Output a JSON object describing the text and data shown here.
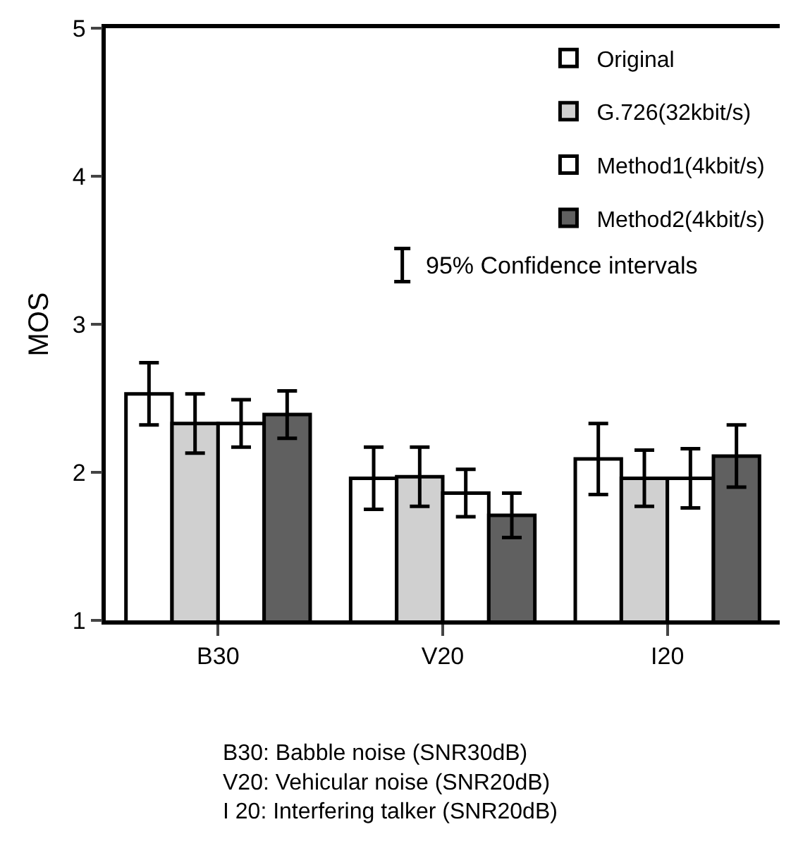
{
  "chart_data": {
    "type": "bar",
    "ylabel": "MOS",
    "categories": [
      "B30",
      "V20",
      "I20"
    ],
    "series": [
      {
        "name": "Original",
        "color": "#ffffff",
        "values": [
          2.53,
          1.96,
          2.09
        ],
        "errors": [
          0.21,
          0.21,
          0.24
        ]
      },
      {
        "name": "G.726(32kbit/s)",
        "color": "#d0d0d0",
        "values": [
          2.33,
          1.97,
          1.96
        ],
        "errors": [
          0.2,
          0.2,
          0.19
        ]
      },
      {
        "name": "Method1(4kbit/s)",
        "color": "#ffffff",
        "values": [
          2.33,
          1.86,
          1.96
        ],
        "errors": [
          0.16,
          0.16,
          0.2
        ]
      },
      {
        "name": "Method2(4kbit/s)",
        "color": "#606060",
        "values": [
          2.39,
          1.71,
          2.11
        ],
        "errors": [
          0.16,
          0.15,
          0.21
        ]
      }
    ],
    "ylim": [
      1,
      5
    ],
    "yticks": [
      1,
      2,
      3,
      4,
      5
    ],
    "legend": "top right",
    "annotations": [
      "95% Confidence intervals",
      "B30: Babble noise (SNR30dB)\nV20: Vehicular noise (SNR20dB)\nI 20: Interfering talker (SNR20dB)"
    ]
  }
}
